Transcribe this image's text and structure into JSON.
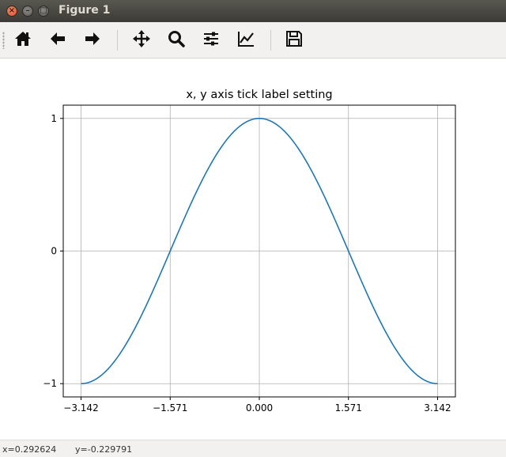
{
  "window": {
    "title": "Figure 1",
    "close_glyph": "×",
    "min_glyph": "–",
    "max_glyph": "□"
  },
  "toolbar": {
    "buttons": [
      {
        "name": "home-icon",
        "tooltip": "Home"
      },
      {
        "name": "back-arrow-icon",
        "tooltip": "Back"
      },
      {
        "name": "forward-arrow-icon",
        "tooltip": "Forward"
      },
      {
        "name": "pan-move-icon",
        "tooltip": "Pan"
      },
      {
        "name": "zoom-magnifier-icon",
        "tooltip": "Zoom"
      },
      {
        "name": "subplots-sliders-icon",
        "tooltip": "Subplots"
      },
      {
        "name": "edit-axes-chart-icon",
        "tooltip": "Customize"
      },
      {
        "name": "save-floppy-icon",
        "tooltip": "Save"
      }
    ]
  },
  "status": {
    "x_readout": "x=0.292624",
    "y_readout": "y=-0.229791"
  },
  "colors": {
    "line": "#1f77b4",
    "grid": "#b0b0b0",
    "axes": "#000000",
    "titlebar": "#3c3b37",
    "toolbar": "#f2f1f0"
  },
  "chart_data": {
    "type": "line",
    "title": "x, y axis tick label setting",
    "xlabel": "",
    "ylabel": "",
    "function": "cos(x)",
    "x_range": [
      -3.14159,
      3.14159
    ],
    "xlim": [
      -3.4557,
      3.4557
    ],
    "ylim": [
      -1.1,
      1.1
    ],
    "xticks": [
      -3.142,
      -1.571,
      0.0,
      1.571,
      3.142
    ],
    "xtick_labels": [
      "−3.142",
      "−1.571",
      "0.000",
      "1.571",
      "3.142"
    ],
    "yticks": [
      -1,
      0,
      1
    ],
    "ytick_labels": [
      "−1",
      "0",
      "1"
    ],
    "grid": true,
    "series": [
      {
        "x": [
          -3.142,
          -2.749,
          -2.356,
          -1.963,
          -1.571,
          -1.178,
          -0.785,
          -0.393,
          0.0,
          0.393,
          0.785,
          1.178,
          1.571,
          1.963,
          2.356,
          2.749,
          3.142
        ],
        "y": [
          -1.0,
          -0.924,
          -0.707,
          -0.383,
          0.0,
          0.383,
          0.707,
          0.924,
          1.0,
          0.924,
          0.707,
          0.383,
          0.0,
          -0.383,
          -0.707,
          -0.924,
          -1.0
        ]
      }
    ]
  }
}
